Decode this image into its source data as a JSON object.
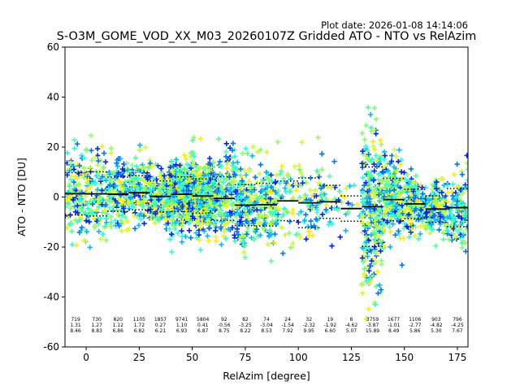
{
  "chart_data": {
    "type": "scatter",
    "plot_date": "Plot date: 2026-01-08 14:14:06",
    "title": "S-O3M_GOME_VOD_XX_M03_20260107Z Gridded ATO - NTO vs RelAzim",
    "xlabel": "RelAzim [degree]",
    "ylabel": "ATO - NTO [DU]",
    "xlim": [
      -10,
      180
    ],
    "ylim": [
      -60,
      60
    ],
    "x_ticks": [
      0,
      25,
      50,
      75,
      100,
      125,
      150,
      175
    ],
    "y_ticks": [
      60,
      40,
      20,
      0,
      -20,
      -40,
      -60
    ],
    "grid": false,
    "marker": "+",
    "point_colormap": [
      "#0022ff",
      "#0077ff",
      "#00bbff",
      "#22ffdd",
      "#55ff99",
      "#88ff66",
      "#ccff22",
      "#ffee00"
    ],
    "bins": [
      {
        "x": -5,
        "count": 719,
        "mean": 1.31,
        "std": 8.46
      },
      {
        "x": 5,
        "count": 730,
        "mean": 1.27,
        "std": 8.83
      },
      {
        "x": 15,
        "count": 820,
        "mean": 1.12,
        "std": 6.86
      },
      {
        "x": 25,
        "count": 1105,
        "mean": 1.72,
        "std": 6.82
      },
      {
        "x": 35,
        "count": 1857,
        "mean": 0.27,
        "std": 6.21
      },
      {
        "x": 45,
        "count": 9741,
        "mean": 1.1,
        "std": 6.93
      },
      {
        "x": 55,
        "count": 5804,
        "mean": 0.41,
        "std": 6.87
      },
      {
        "x": 65,
        "count": 92,
        "mean": -0.56,
        "std": 8.75
      },
      {
        "x": 75,
        "count": 82,
        "mean": -3.25,
        "std": 8.22
      },
      {
        "x": 85,
        "count": 74,
        "mean": -3.04,
        "std": 8.53
      },
      {
        "x": 95,
        "count": 24,
        "mean": -1.54,
        "std": 7.92
      },
      {
        "x": 105,
        "count": 32,
        "mean": -2.32,
        "std": 9.95
      },
      {
        "x": 115,
        "count": 19,
        "mean": -1.92,
        "std": 6.6
      },
      {
        "x": 125,
        "count": 8,
        "mean": -4.62,
        "std": 5.07
      },
      {
        "x": 135,
        "count": 3759,
        "mean": -3.87,
        "std": 15.89
      },
      {
        "x": 145,
        "count": 1677,
        "mean": -1.01,
        "std": 8.49
      },
      {
        "x": 155,
        "count": 1106,
        "mean": -2.77,
        "std": 5.86
      },
      {
        "x": 165,
        "count": 903,
        "mean": -4.82,
        "std": 5.3
      },
      {
        "x": 175,
        "count": 796,
        "mean": -4.25,
        "std": 7.67
      }
    ]
  }
}
